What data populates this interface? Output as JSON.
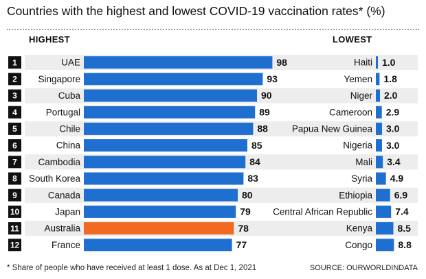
{
  "title": "Countries with the highest and lowest COVID-19 vaccination rates* (%)",
  "footnote": "* Share of people who have received at least 1 dose. As at Dec 1, 2021",
  "source": "SOURCE: OURWORLDINDATA",
  "colors": {
    "bar": "#1f6fd1",
    "highlight": "#f26a21",
    "rank_box": "#111111",
    "row_shade": "#ededed"
  },
  "chart_data": [
    {
      "type": "bar",
      "orientation": "horizontal",
      "heading": "HIGHEST",
      "ranks": [
        "1",
        "2",
        "3",
        "4",
        "5",
        "6",
        "7",
        "8",
        "9",
        "10",
        "11",
        "12"
      ],
      "categories": [
        "UAE",
        "Singapore",
        "Cuba",
        "Portugal",
        "Chile",
        "China",
        "Cambodia",
        "South Korea",
        "Canada",
        "Japan",
        "Australia",
        "France"
      ],
      "values": [
        98,
        93,
        90,
        89,
        88,
        85,
        84,
        83,
        80,
        79,
        78,
        77
      ],
      "labels": [
        "98",
        "93",
        "90",
        "89",
        "88",
        "85",
        "84",
        "83",
        "80",
        "79",
        "78",
        "77"
      ],
      "highlight": "Australia",
      "xlim": [
        0,
        100
      ]
    },
    {
      "type": "bar",
      "orientation": "horizontal",
      "heading": "LOWEST",
      "categories": [
        "Haiti",
        "Yemen",
        "Niger",
        "Cameroon",
        "Papua New Guinea",
        "Nigeria",
        "Mali",
        "Syria",
        "Ethiopia",
        "Central African Republic",
        "Kenya",
        "Congo"
      ],
      "values": [
        1.0,
        1.8,
        2.0,
        2.9,
        3.0,
        3.0,
        3.4,
        4.9,
        6.9,
        7.4,
        8.5,
        8.8
      ],
      "labels": [
        "1.0",
        "1.8",
        "2.0",
        "2.9",
        "3.0",
        "3.0",
        "3.4",
        "4.9",
        "6.9",
        "7.4",
        "8.5",
        "8.8"
      ],
      "xlim": [
        0,
        100
      ]
    }
  ]
}
